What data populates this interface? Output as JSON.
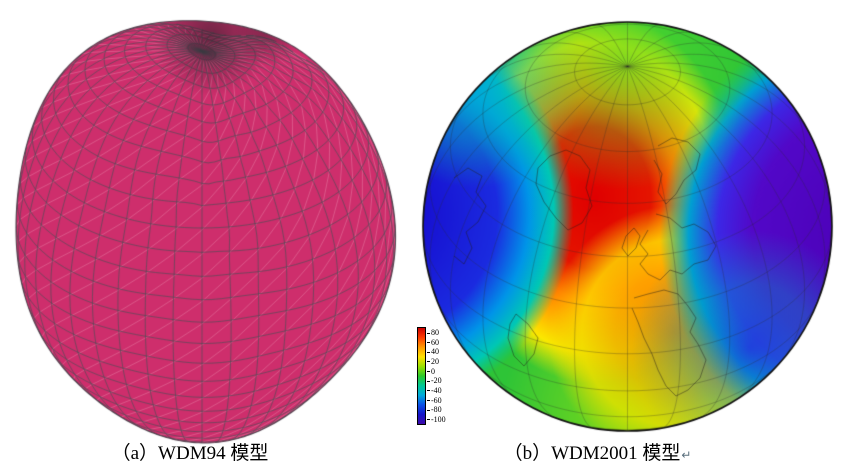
{
  "figures": {
    "a": {
      "caption": "（a）WDM94 模型",
      "model_name": "WDM94",
      "surface_color": "#ce2e6c",
      "grid_color": "#4f4f58",
      "light_line_color": "#ea86ab"
    },
    "b": {
      "caption": "（b）WDM2001 模型",
      "paragraph_mark": "↵",
      "model_name": "WDM2001",
      "colorbar": {
        "tick_labels": [
          "80",
          "60",
          "40",
          "20",
          "0",
          "-20",
          "-40",
          "-60",
          "-80",
          "-100"
        ],
        "gradient_colors": [
          "#cc0000",
          "#ff3c00",
          "#ff9900",
          "#ffe100",
          "#9ae000",
          "#2bc92b",
          "#00c896",
          "#00aadc",
          "#0a50e6",
          "#1414c8",
          "#3c0aaa"
        ]
      }
    }
  }
}
